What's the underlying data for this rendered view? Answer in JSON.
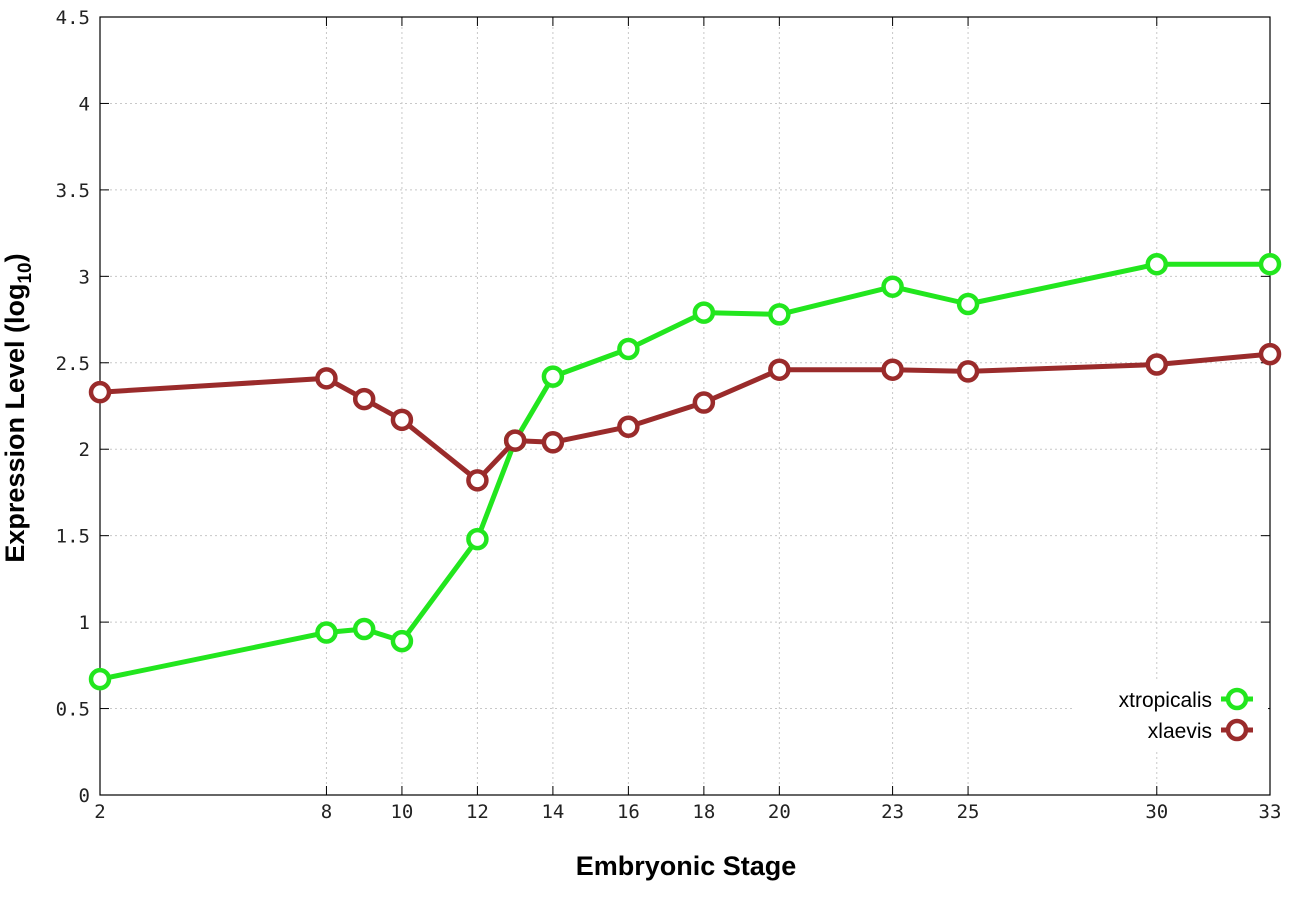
{
  "chart_data": {
    "type": "line",
    "xlabel": "Embryonic Stage",
    "ylabel_main": "Expression Level (log",
    "ylabel_sub": "10",
    "ylabel_close": ")",
    "ylim": [
      0,
      4.5
    ],
    "x_ticks": [
      2,
      8,
      10,
      12,
      14,
      16,
      18,
      20,
      23,
      25,
      30,
      33
    ],
    "x_tick_labels": [
      "2",
      "8",
      "10",
      "12",
      "14",
      "16",
      "18",
      "20",
      "23",
      "25",
      "30",
      "33"
    ],
    "y_ticks": [
      0,
      0.5,
      1,
      1.5,
      2,
      2.5,
      3,
      3.5,
      4,
      4.5
    ],
    "y_tick_labels": [
      "0",
      "0.5",
      "1",
      "1.5",
      "2",
      "2.5",
      "3",
      "3.5",
      "4",
      "4.5"
    ],
    "x": [
      2,
      8,
      9,
      10,
      12,
      13,
      14,
      16,
      18,
      20,
      23,
      25,
      30,
      33
    ],
    "grid": true,
    "legend_position": "bottom-right",
    "series": [
      {
        "name": "xtropicalis",
        "color": "#22e61e",
        "values": [
          0.67,
          0.94,
          0.96,
          0.89,
          1.48,
          2.05,
          2.42,
          2.58,
          2.79,
          2.78,
          2.94,
          2.84,
          3.07,
          3.07
        ]
      },
      {
        "name": "xlaevis",
        "color": "#9a2b2b",
        "values": [
          2.33,
          2.41,
          2.29,
          2.17,
          1.82,
          2.05,
          2.04,
          2.13,
          2.27,
          2.46,
          2.46,
          2.45,
          2.49,
          2.55
        ]
      }
    ]
  }
}
